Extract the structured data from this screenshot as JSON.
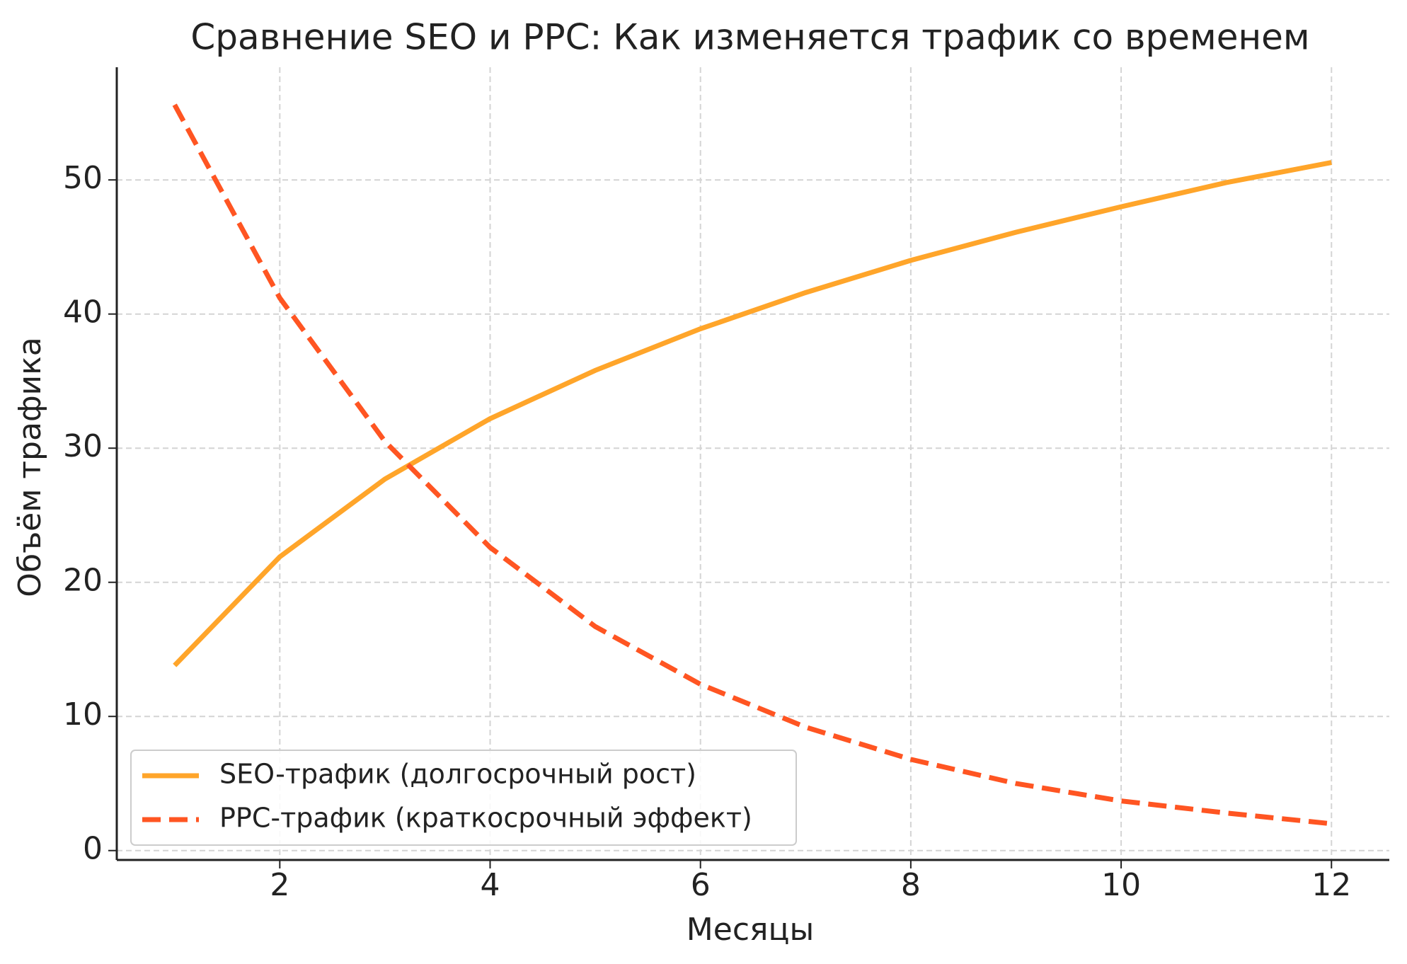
{
  "chart_data": {
    "type": "line",
    "title": "Сравнение SEO и PPC: Как изменяется трафик со временем",
    "x_label": "Месяцы",
    "y_label": "Объём трафика",
    "x": [
      1,
      2,
      3,
      4,
      5,
      6,
      7,
      8,
      9,
      10,
      11,
      12
    ],
    "series": [
      {
        "name": "SEO-трафик (долгосрочный рост)",
        "color": "#ffa52a",
        "dash": false,
        "values": [
          13.8,
          21.9,
          27.7,
          32.2,
          35.8,
          38.9,
          41.6,
          44.0,
          46.1,
          48.0,
          49.8,
          51.3
        ]
      },
      {
        "name": "PPC-трафик (краткосрочный эффект)",
        "color": "#ff5522",
        "dash": true,
        "values": [
          55.6,
          41.2,
          30.5,
          22.6,
          16.7,
          12.4,
          9.2,
          6.8,
          5.0,
          3.7,
          2.8,
          2.0
        ]
      }
    ],
    "xlim": [
      0.45,
      12.55
    ],
    "ylim": [
      -0.7,
      58.4
    ],
    "xticks": [
      2,
      4,
      6,
      8,
      10,
      12
    ],
    "yticks": [
      0,
      10,
      20,
      30,
      40,
      50
    ],
    "grid": true,
    "legend": "lower left"
  }
}
